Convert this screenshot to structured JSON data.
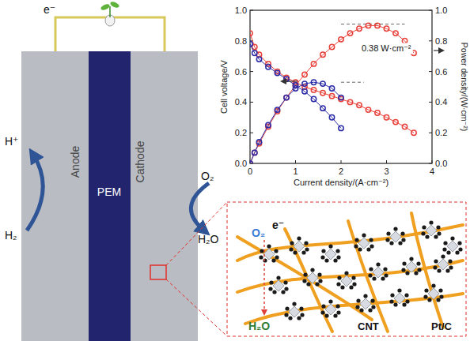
{
  "diagram": {
    "circuit_label": "e⁻",
    "anode_label": "Anode",
    "membrane_label": "PEM",
    "cathode_label": "Cathode",
    "anode_in": "H₂",
    "anode_out": "H⁺",
    "cathode_in": "O₂",
    "cathode_out": "H₂O"
  },
  "inset": {
    "reactant": "O₂",
    "electron": "e⁻",
    "product": "H₂O",
    "support_label": "CNT",
    "catalyst_label": "Pt/C"
  },
  "chart_data": {
    "type": "line",
    "x_label": "Current density/(A·cm⁻²)",
    "y_label": "Cell voltage/V",
    "y2_label": "Power density/(W·cm⁻²)",
    "xlim": [
      0,
      4
    ],
    "xticks": [
      0,
      1,
      2,
      3,
      4
    ],
    "ylim": [
      0,
      1
    ],
    "yticks": [
      {
        "value": 0,
        "label": "0.0"
      },
      {
        "value": 0.2,
        "label": "0.2"
      },
      {
        "value": 0.4,
        "label": "0.4"
      },
      {
        "value": 0.6,
        "label": "0.6"
      },
      {
        "value": 0.8,
        "label": "0.8"
      },
      {
        "value": 1,
        "label": "1.0"
      }
    ],
    "y2lim": [
      0,
      1
    ],
    "y2ticks": [
      {
        "value": 0,
        "label": "0.0"
      },
      {
        "value": 0.2,
        "label": "0.2"
      },
      {
        "value": 0.4,
        "label": "0.4"
      },
      {
        "value": 0.6,
        "label": "0.6"
      },
      {
        "value": 0.8,
        "label": "0.8"
      },
      {
        "value": 1,
        "label": "1.0"
      }
    ],
    "series": [
      {
        "color": "#e8413a",
        "marker": "circle",
        "x": [
          0,
          0.1,
          0.2,
          0.4,
          0.6,
          0.8,
          1.0,
          1.2,
          1.4,
          1.6,
          1.8,
          2.0,
          2.2,
          2.4,
          2.6,
          2.8,
          3.0,
          3.2,
          3.4,
          3.6
        ],
        "values": [
          0.85,
          0.76,
          0.71,
          0.65,
          0.6,
          0.56,
          0.53,
          0.5,
          0.48,
          0.46,
          0.44,
          0.42,
          0.4,
          0.38,
          0.35,
          0.33,
          0.3,
          0.27,
          0.24,
          0.2
        ]
      },
      {
        "color": "#e8413a",
        "marker": "circle",
        "axis": "y2",
        "x": [
          0,
          0.1,
          0.2,
          0.4,
          0.6,
          0.8,
          1.0,
          1.2,
          1.4,
          1.6,
          1.8,
          2.0,
          2.2,
          2.4,
          2.6,
          2.8,
          3.0,
          3.2,
          3.4,
          3.6
        ],
        "values": [
          0,
          0.07,
          0.13,
          0.24,
          0.34,
          0.43,
          0.51,
          0.58,
          0.65,
          0.71,
          0.76,
          0.81,
          0.85,
          0.88,
          0.9,
          0.9,
          0.88,
          0.85,
          0.8,
          0.72
        ]
      },
      {
        "color": "#2b2ba8",
        "marker": "circle",
        "x": [
          0,
          0.1,
          0.2,
          0.4,
          0.6,
          0.8,
          1.0,
          1.2,
          1.4,
          1.6,
          1.8,
          2.0
        ],
        "values": [
          0.78,
          0.72,
          0.68,
          0.63,
          0.59,
          0.55,
          0.51,
          0.47,
          0.42,
          0.36,
          0.3,
          0.23
        ]
      },
      {
        "color": "#2b2ba8",
        "marker": "circle",
        "axis": "y2",
        "x": [
          0,
          0.1,
          0.2,
          0.4,
          0.6,
          0.8,
          1.0,
          1.2,
          1.4,
          1.6,
          1.8,
          2.0
        ],
        "values": [
          0,
          0.07,
          0.14,
          0.25,
          0.35,
          0.43,
          0.49,
          0.52,
          0.53,
          0.52,
          0.49,
          0.43
        ]
      }
    ],
    "annotations": [
      {
        "text": "0.38 W·cm⁻²",
        "x": 2.45,
        "y": 0.73
      }
    ],
    "reference_lines": [
      {
        "y": 0.91,
        "x": [
          2.0,
          3.4
        ]
      },
      {
        "y": 0.53,
        "x": [
          2.0,
          2.5
        ]
      }
    ]
  }
}
